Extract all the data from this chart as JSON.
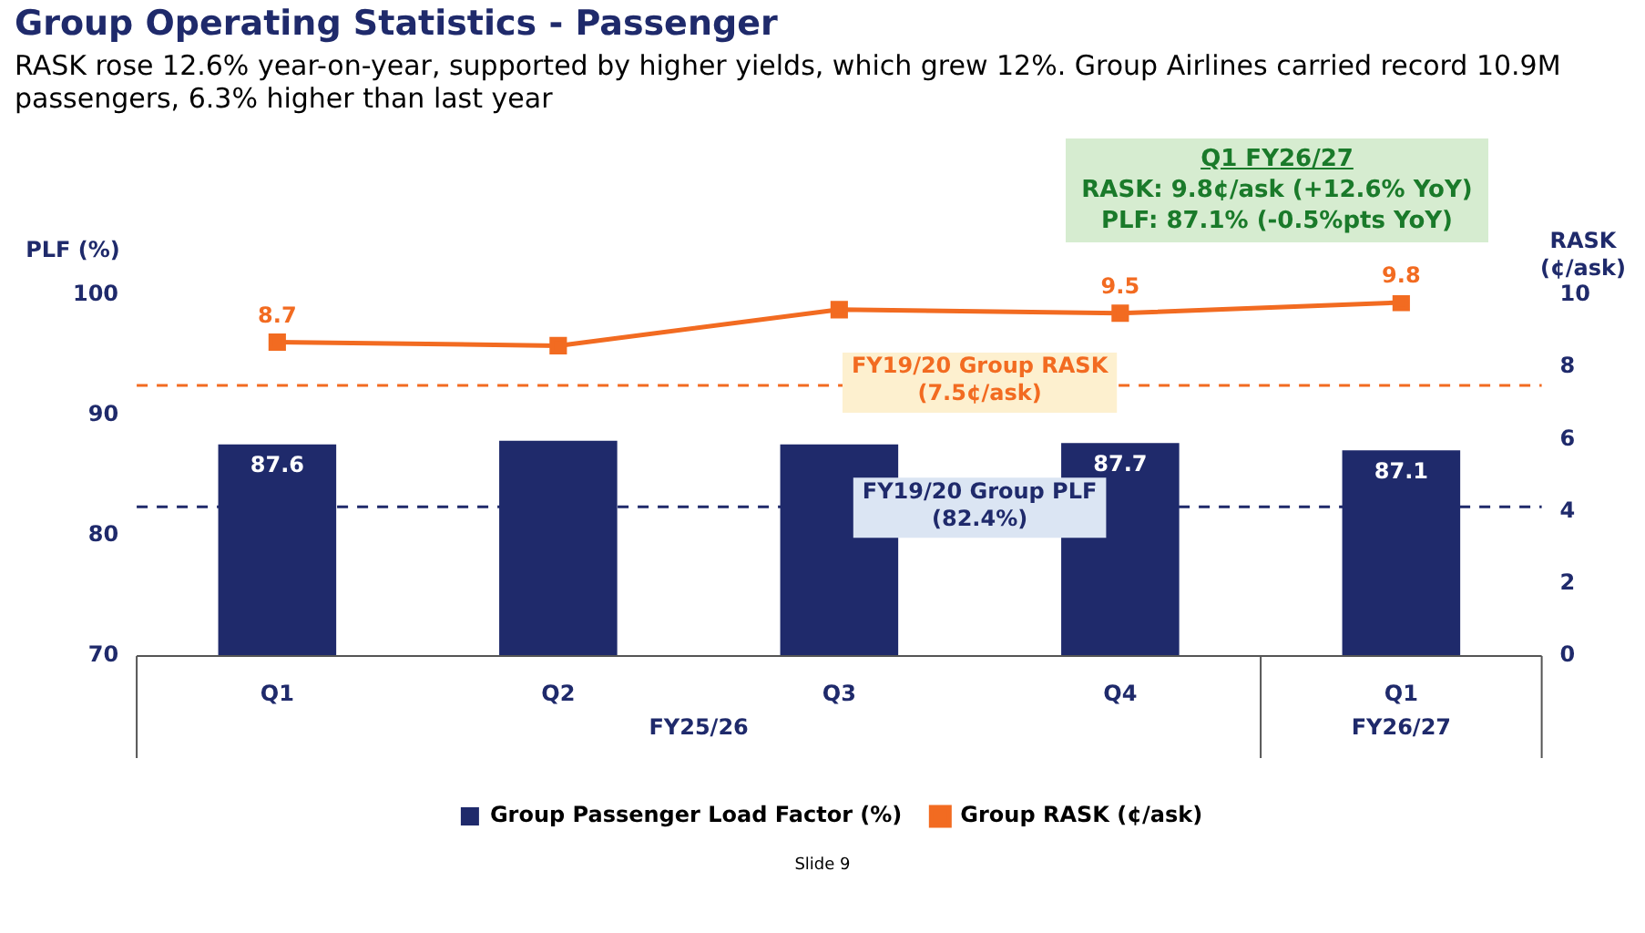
{
  "chart_data": {
    "type": "bar",
    "title": "Group Operating Statistics - Passenger",
    "subtitle": "RASK rose 12.6% year-on-year, supported by higher yields, which grew 12%. Group Airlines carried record 10.9M passengers, 6.3% higher than last year",
    "ylabel": "PLF (%)",
    "y2label": "RASK (¢/ask)",
    "categories": [
      "Q1",
      "Q2",
      "Q3",
      "Q4",
      "Q1"
    ],
    "series": [
      {
        "name": "Group Passenger Load Factor (%)",
        "color": "#1f2a6b",
        "values": [
          87.6,
          87.9,
          87.6,
          87.7,
          87.1
        ],
        "value_labels": [
          "87.6",
          null,
          null,
          "87.7",
          "87.1"
        ]
      },
      {
        "name": "Group RASK (¢/ask)",
        "type": "line",
        "axis": "y2",
        "color": "#f26b21",
        "values": [
          8.7,
          8.6,
          9.6,
          9.5,
          9.8
        ],
        "value_labels": [
          "8.7",
          null,
          null,
          "9.5",
          "9.8"
        ],
        "marker": "square"
      }
    ],
    "ylim": [
      70,
      100
    ],
    "yticks": [
      70,
      80,
      90,
      100
    ],
    "y2lim": [
      0,
      10
    ],
    "y2ticks": [
      0,
      2,
      4,
      6,
      8,
      10
    ],
    "ref_lines": [
      {
        "axis": "y2",
        "value": 7.5,
        "label": "FY19/20 Group RASK (7.5¢/ask)",
        "color": "#f26b21",
        "line_style": "dashed"
      },
      {
        "axis": "y",
        "value": 82.4,
        "label": "FY19/20 Group PLF (82.4%)",
        "color": "#1f2a6b",
        "line_style": "dashed"
      }
    ],
    "annotations": [
      "Q1 FY26/27",
      "RASK: 9.8¢/ask (+12.6% YoY)",
      "PLF: 87.1% (-0.5%pts YoY)",
      "FY25/26",
      "FY26/27",
      "Slide 9"
    ],
    "legend": "bottom",
    "grid": false
  }
}
